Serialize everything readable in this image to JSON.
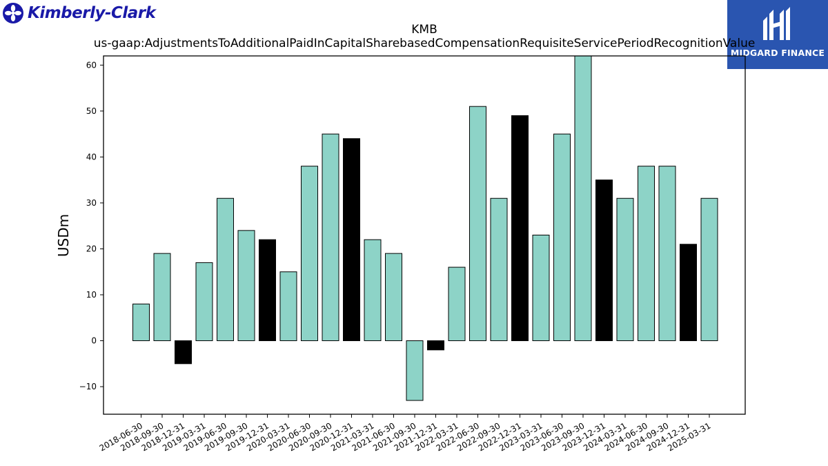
{
  "logos": {
    "left_brand": "Kimberly-Clark",
    "left_icon": "kimberly-clark-emblem-icon",
    "right_brand": "MIDGARD FINANCE",
    "right_icon": "midgard-finance-emblem-icon"
  },
  "colors": {
    "bar_default": "#8dd3c7",
    "bar_highlight": "#000000",
    "bar_edge": "#000000",
    "left_logo": "#1a1aa8",
    "right_logo_bg": "#2a55b0"
  },
  "chart_data": {
    "type": "bar",
    "title": "KMB",
    "subtitle": "us-gaap:AdjustmentsToAdditionalPaidInCapitalSharebasedCompensationRequisiteServicePeriodRecognitionValue",
    "xlabel": "",
    "ylabel": "USDm",
    "ylim": [
      -16,
      62
    ],
    "yticks": [
      -10,
      0,
      10,
      20,
      30,
      40,
      50,
      60
    ],
    "grid": false,
    "categories": [
      "2018-06-30",
      "2018-09-30",
      "2018-12-31",
      "2019-03-31",
      "2019-06-30",
      "2019-09-30",
      "2019-12-31",
      "2020-03-31",
      "2020-06-30",
      "2020-09-30",
      "2020-12-31",
      "2021-03-31",
      "2021-06-30",
      "2021-09-30",
      "2021-12-31",
      "2022-03-31",
      "2022-06-30",
      "2022-09-30",
      "2022-12-31",
      "2023-03-31",
      "2023-06-30",
      "2023-09-30",
      "2023-12-31",
      "2024-03-31",
      "2024-06-30",
      "2024-09-30",
      "2024-12-31",
      "2025-03-31"
    ],
    "values": [
      8,
      19,
      -5,
      17,
      31,
      24,
      22,
      15,
      38,
      45,
      44,
      22,
      19,
      -13,
      -2,
      16,
      51,
      31,
      49,
      23,
      45,
      62,
      35,
      31,
      38,
      38,
      21,
      31
    ],
    "highlighted": [
      "2018-12-31",
      "2019-12-31",
      "2020-12-31",
      "2021-12-31",
      "2022-12-31",
      "2023-12-31",
      "2024-12-31"
    ]
  }
}
